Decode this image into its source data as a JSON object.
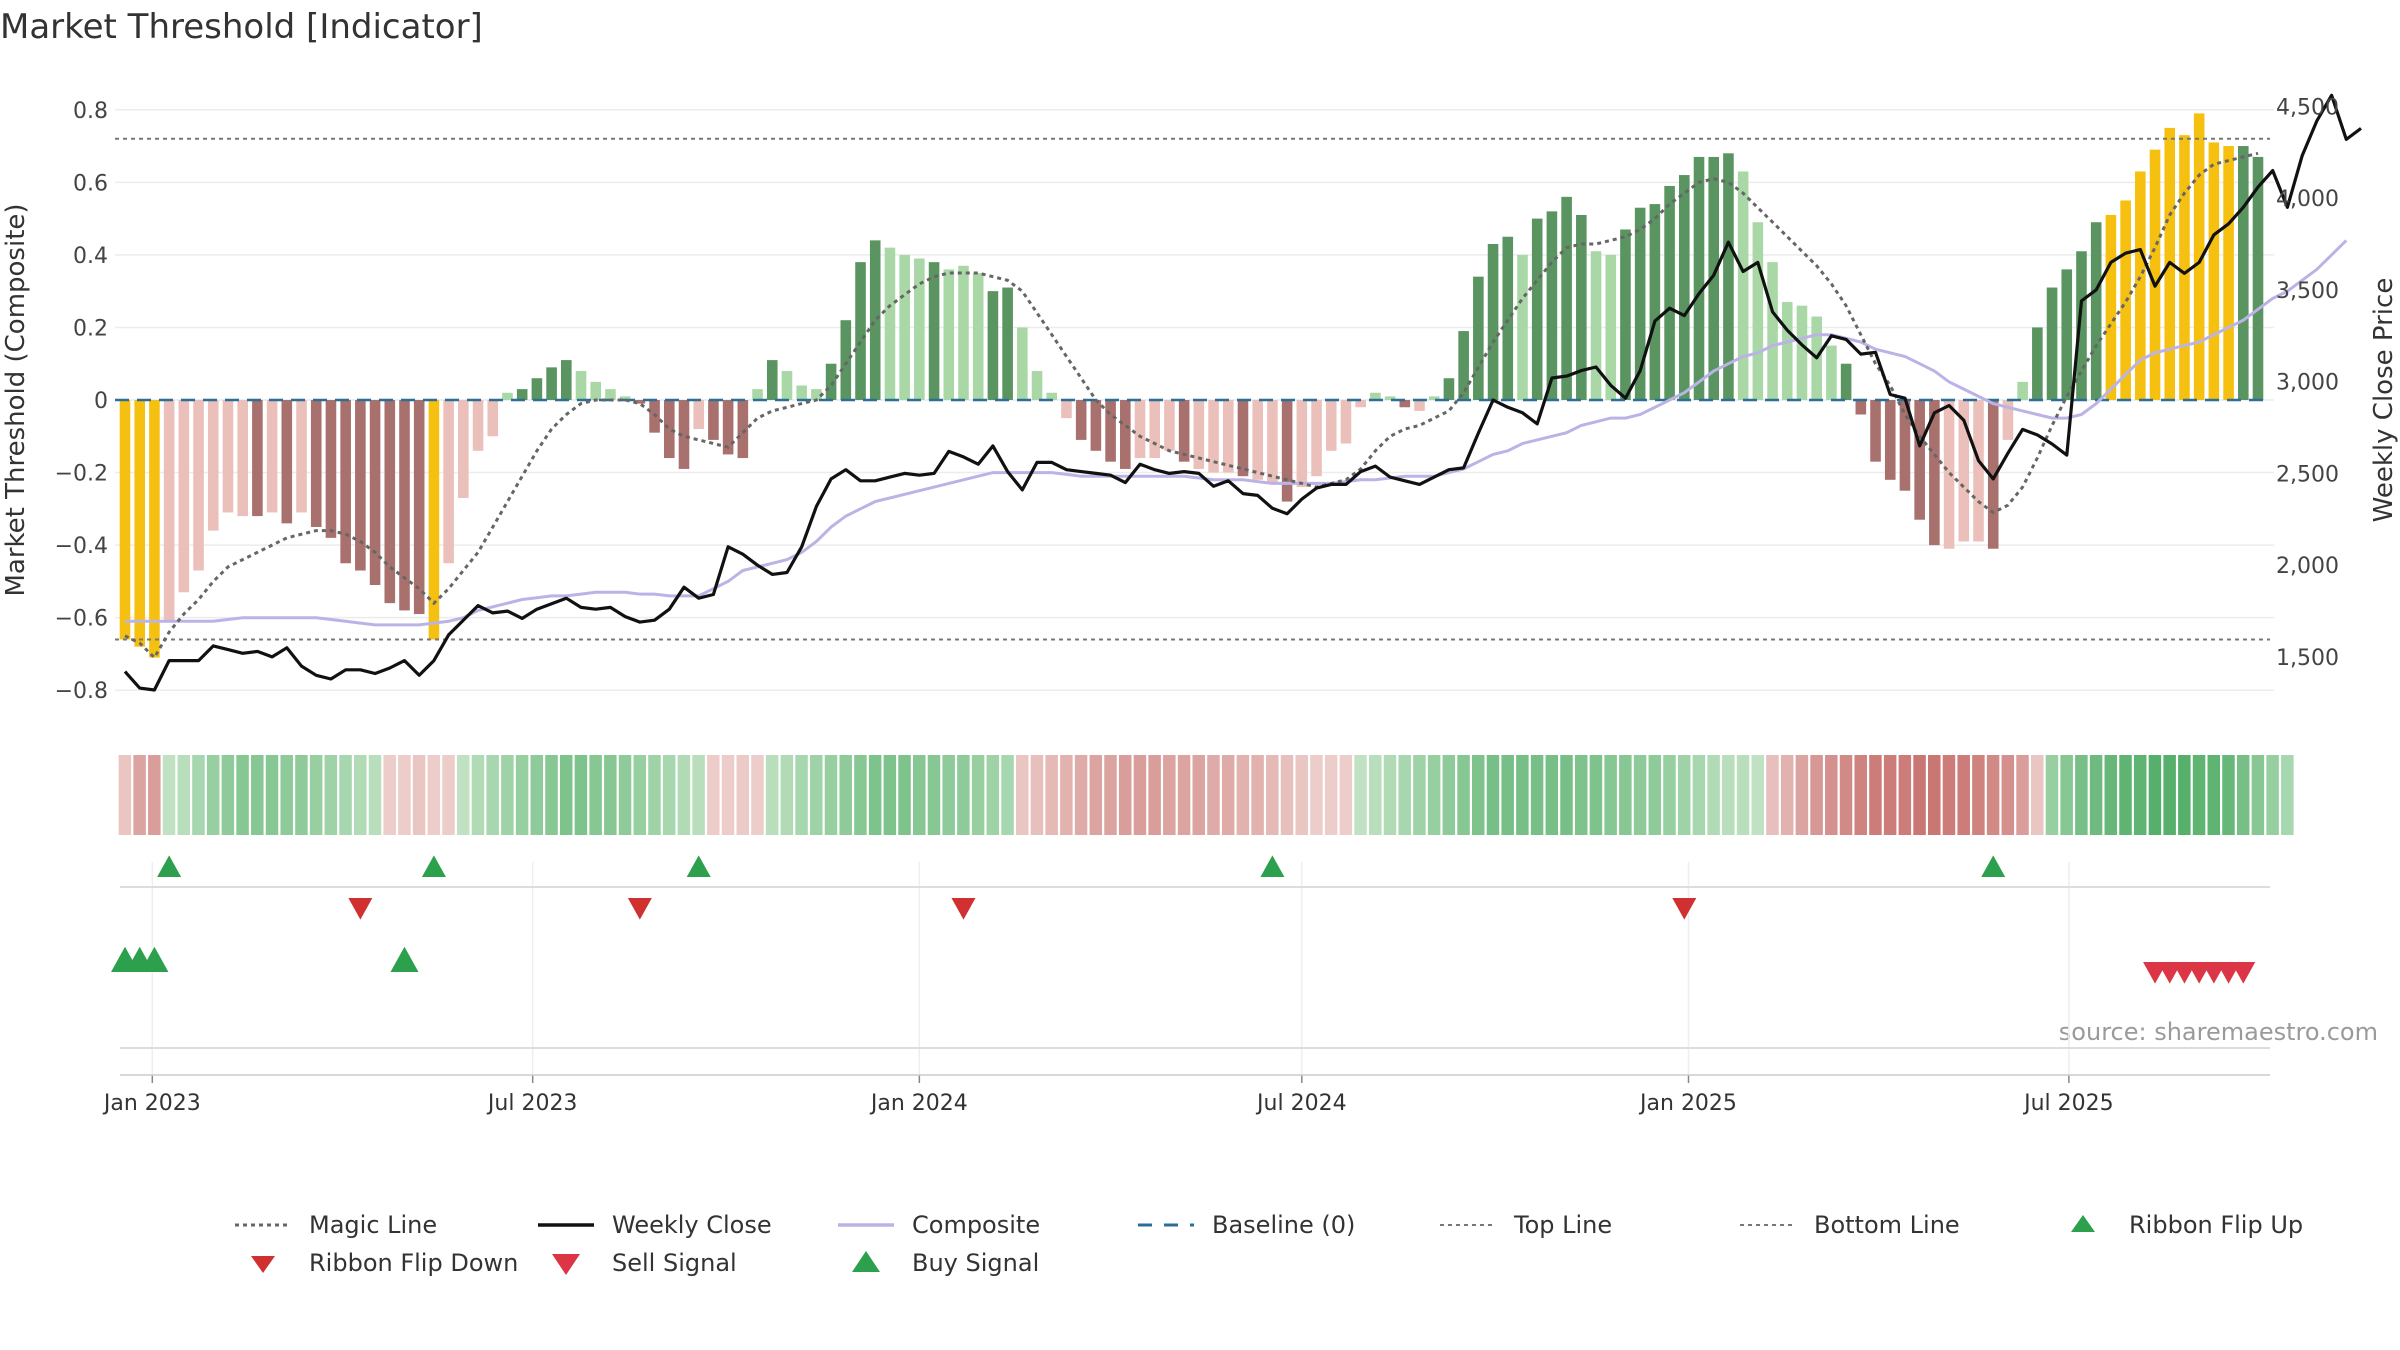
{
  "title": "Market Threshold [Indicator]",
  "source_note": "source: sharemaestro.com",
  "colors": {
    "magic_line": "#666666",
    "weekly_close": "#111111",
    "composite": "#bbb3e6",
    "baseline": "#2a6f97",
    "top_line": "#777777",
    "bottom_line": "#777777",
    "bar_dark_green": "#5a9460",
    "bar_light_green": "#a9d8a6",
    "bar_dark_red": "#a8716e",
    "bar_light_red": "#ebc0bb",
    "bar_extreme": "#f5c010",
    "ribbon_up": "#2ca04c",
    "ribbon_down": "#d03030",
    "buy": "#2ca04c",
    "sell": "#dc3545"
  },
  "chart_data": {
    "type": "bar",
    "title": "Market Threshold [Indicator]",
    "ylabel": "Market Threshold (Composite)",
    "y2label": "Weekly Close Price",
    "ylim": [
      -0.86,
      0.86
    ],
    "y2lim": [
      1200,
      4600
    ],
    "y_ticks": [
      "0.8",
      "0.6",
      "0.4",
      "0.2",
      "0",
      "−0.2",
      "−0.4",
      "−0.6",
      "−0.8"
    ],
    "y2_ticks": [
      "4,500",
      "4,000",
      "3,500",
      "3,000",
      "2,500",
      "2,000",
      "1,500"
    ],
    "x_ticks": [
      "Jan 2023",
      "Jul 2023",
      "Jan 2024",
      "Jul 2024",
      "Jan 2025",
      "Jul 2025"
    ],
    "top_line": 0.72,
    "bottom_line": -0.66,
    "start_date": "2022-12-19",
    "composite_bars": [
      -0.66,
      -0.68,
      -0.71,
      -0.61,
      -0.53,
      -0.47,
      -0.36,
      -0.31,
      -0.32,
      -0.32,
      -0.31,
      -0.34,
      -0.31,
      -0.35,
      -0.38,
      -0.45,
      -0.47,
      -0.51,
      -0.56,
      -0.58,
      -0.59,
      -0.66,
      -0.45,
      -0.27,
      -0.14,
      -0.1,
      0.02,
      0.03,
      0.06,
      0.09,
      0.11,
      0.08,
      0.05,
      0.03,
      0.01,
      -0.01,
      -0.09,
      -0.16,
      -0.19,
      -0.08,
      -0.11,
      -0.15,
      -0.16,
      0.03,
      0.11,
      0.08,
      0.04,
      0.03,
      0.1,
      0.22,
      0.38,
      0.44,
      0.42,
      0.4,
      0.39,
      0.38,
      0.36,
      0.37,
      0.35,
      0.3,
      0.31,
      0.2,
      0.08,
      0.02,
      -0.05,
      -0.11,
      -0.14,
      -0.17,
      -0.19,
      -0.16,
      -0.16,
      -0.14,
      -0.17,
      -0.19,
      -0.2,
      -0.2,
      -0.21,
      -0.22,
      -0.23,
      -0.28,
      -0.24,
      -0.21,
      -0.14,
      -0.12,
      -0.02,
      0.02,
      0.01,
      -0.02,
      -0.03,
      0.01,
      0.06,
      0.19,
      0.34,
      0.43,
      0.45,
      0.4,
      0.5,
      0.52,
      0.56,
      0.51,
      0.41,
      0.4,
      0.47,
      0.53,
      0.54,
      0.59,
      0.62,
      0.67,
      0.67,
      0.68,
      0.63,
      0.49,
      0.38,
      0.27,
      0.26,
      0.23,
      0.15,
      0.1,
      -0.04,
      -0.17,
      -0.22,
      -0.25,
      -0.33,
      -0.4,
      -0.41,
      -0.39,
      -0.39,
      -0.41,
      -0.11,
      0.05,
      0.2,
      0.31,
      0.36,
      0.41,
      0.49,
      0.51,
      0.55,
      0.63,
      0.69,
      0.75,
      0.73,
      0.79,
      0.71,
      0.7,
      0.7,
      0.67
    ],
    "bar_categories": [
      "d",
      "d",
      "d",
      "l",
      "l",
      "l",
      "l",
      "l",
      "l",
      "d",
      "l",
      "d",
      "l",
      "d",
      "d",
      "d",
      "d",
      "d",
      "d",
      "d",
      "d",
      "d",
      "l",
      "l",
      "l",
      "l",
      "l",
      "d",
      "d",
      "d",
      "d",
      "l",
      "l",
      "l",
      "l",
      "d",
      "d",
      "d",
      "d",
      "l",
      "d",
      "d",
      "d",
      "l",
      "d",
      "l",
      "l",
      "l",
      "d",
      "d",
      "d",
      "d",
      "l",
      "l",
      "l",
      "d",
      "l",
      "l",
      "l",
      "d",
      "d",
      "l",
      "l",
      "l",
      "l",
      "d",
      "d",
      "d",
      "d",
      "l",
      "l",
      "l",
      "d",
      "l",
      "l",
      "l",
      "d",
      "l",
      "l",
      "d",
      "l",
      "l",
      "l",
      "l",
      "l",
      "l",
      "l",
      "d",
      "l",
      "l",
      "d",
      "d",
      "d",
      "d",
      "d",
      "l",
      "d",
      "d",
      "d",
      "d",
      "l",
      "l",
      "d",
      "d",
      "d",
      "d",
      "d",
      "d",
      "d",
      "d",
      "l",
      "l",
      "l",
      "l",
      "l",
      "l",
      "l",
      "d",
      "d",
      "d",
      "d",
      "d",
      "d",
      "d",
      "l",
      "l",
      "l",
      "d",
      "l",
      "l",
      "d",
      "d",
      "d",
      "d",
      "d",
      "d",
      "d",
      "d",
      "d",
      "d",
      "d",
      "d",
      "d",
      "d",
      "d",
      "d",
      "d",
      "l"
    ],
    "extreme_bars": [
      0,
      1,
      2,
      21,
      135,
      136,
      137,
      138,
      139,
      140,
      141,
      142,
      143
    ],
    "weekly_close": [
      1420,
      1330,
      1320,
      1480,
      1480,
      1480,
      1560,
      1540,
      1520,
      1530,
      1500,
      1550,
      1450,
      1400,
      1380,
      1430,
      1430,
      1410,
      1440,
      1480,
      1400,
      1480,
      1620,
      1700,
      1780,
      1740,
      1750,
      1710,
      1760,
      1790,
      1820,
      1770,
      1760,
      1770,
      1720,
      1690,
      1700,
      1760,
      1880,
      1820,
      1840,
      2100,
      2060,
      2000,
      1950,
      1960,
      2100,
      2320,
      2470,
      2520,
      2460,
      2460,
      2480,
      2500,
      2490,
      2500,
      2620,
      2590,
      2550,
      2650,
      2510,
      2410,
      2560,
      2560,
      2520,
      2510,
      2500,
      2490,
      2450,
      2550,
      2520,
      2500,
      2510,
      2500,
      2430,
      2460,
      2390,
      2380,
      2310,
      2280,
      2360,
      2420,
      2440,
      2440,
      2510,
      2540,
      2480,
      2460,
      2440,
      2480,
      2520,
      2530,
      2720,
      2900,
      2860,
      2830,
      2770,
      3020,
      3030,
      3060,
      3080,
      2980,
      2910,
      3060,
      3330,
      3400,
      3360,
      3480,
      3580,
      3760,
      3600,
      3650,
      3380,
      3280,
      3200,
      3130,
      3250,
      3230,
      3150,
      3160,
      2930,
      2910,
      2650,
      2830,
      2870,
      2790,
      2570,
      2470,
      2610,
      2740,
      2710,
      2660,
      2600,
      3440,
      3500,
      3650,
      3700,
      3720,
      3520,
      3650,
      3590,
      3650,
      3800,
      3860,
      3950,
      4060,
      4150,
      3950,
      4230,
      4420,
      4560,
      4320,
      4380
    ],
    "composite_line": [
      -0.61,
      -0.61,
      -0.61,
      -0.61,
      -0.61,
      -0.61,
      -0.61,
      -0.605,
      -0.6,
      -0.6,
      -0.6,
      -0.6,
      -0.6,
      -0.6,
      -0.605,
      -0.61,
      -0.615,
      -0.62,
      -0.62,
      -0.62,
      -0.62,
      -0.615,
      -0.61,
      -0.6,
      -0.58,
      -0.57,
      -0.56,
      -0.55,
      -0.545,
      -0.54,
      -0.54,
      -0.535,
      -0.53,
      -0.53,
      -0.53,
      -0.535,
      -0.535,
      -0.54,
      -0.54,
      -0.54,
      -0.52,
      -0.5,
      -0.47,
      -0.46,
      -0.45,
      -0.44,
      -0.42,
      -0.39,
      -0.35,
      -0.32,
      -0.3,
      -0.28,
      -0.27,
      -0.26,
      -0.25,
      -0.24,
      -0.23,
      -0.22,
      -0.21,
      -0.2,
      -0.2,
      -0.2,
      -0.2,
      -0.2,
      -0.205,
      -0.21,
      -0.21,
      -0.21,
      -0.21,
      -0.21,
      -0.21,
      -0.21,
      -0.21,
      -0.215,
      -0.22,
      -0.22,
      -0.22,
      -0.225,
      -0.23,
      -0.23,
      -0.23,
      -0.23,
      -0.23,
      -0.225,
      -0.22,
      -0.22,
      -0.215,
      -0.21,
      -0.21,
      -0.21,
      -0.2,
      -0.19,
      -0.17,
      -0.15,
      -0.14,
      -0.12,
      -0.11,
      -0.1,
      -0.09,
      -0.07,
      -0.06,
      -0.05,
      -0.05,
      -0.04,
      -0.02,
      0.0,
      0.02,
      0.05,
      0.08,
      0.1,
      0.12,
      0.13,
      0.15,
      0.16,
      0.17,
      0.18,
      0.18,
      0.17,
      0.16,
      0.14,
      0.13,
      0.12,
      0.1,
      0.08,
      0.05,
      0.03,
      0.01,
      -0.01,
      -0.02,
      -0.03,
      -0.04,
      -0.05,
      -0.05,
      -0.04,
      -0.01,
      0.03,
      0.07,
      0.11,
      0.13,
      0.14,
      0.15,
      0.16,
      0.18,
      0.2,
      0.22,
      0.25,
      0.28,
      0.3,
      0.33,
      0.36,
      0.4,
      0.44
    ],
    "magic_line": [
      -0.65,
      -0.67,
      -0.71,
      -0.64,
      -0.59,
      -0.55,
      -0.5,
      -0.46,
      -0.44,
      -0.42,
      -0.4,
      -0.38,
      -0.37,
      -0.36,
      -0.36,
      -0.37,
      -0.39,
      -0.42,
      -0.46,
      -0.49,
      -0.52,
      -0.56,
      -0.52,
      -0.47,
      -0.42,
      -0.35,
      -0.28,
      -0.21,
      -0.14,
      -0.08,
      -0.04,
      -0.01,
      0.0,
      0.0,
      0.0,
      -0.01,
      -0.04,
      -0.08,
      -0.1,
      -0.11,
      -0.12,
      -0.13,
      -0.09,
      -0.05,
      -0.03,
      -0.02,
      -0.01,
      0.0,
      0.04,
      0.1,
      0.16,
      0.22,
      0.26,
      0.29,
      0.32,
      0.34,
      0.35,
      0.35,
      0.35,
      0.34,
      0.33,
      0.3,
      0.24,
      0.18,
      0.12,
      0.06,
      0.0,
      -0.04,
      -0.07,
      -0.1,
      -0.12,
      -0.14,
      -0.15,
      -0.16,
      -0.17,
      -0.18,
      -0.19,
      -0.2,
      -0.21,
      -0.22,
      -0.23,
      -0.24,
      -0.23,
      -0.22,
      -0.19,
      -0.14,
      -0.1,
      -0.08,
      -0.07,
      -0.05,
      -0.03,
      0.02,
      0.09,
      0.16,
      0.22,
      0.28,
      0.33,
      0.38,
      0.42,
      0.43,
      0.43,
      0.44,
      0.45,
      0.47,
      0.5,
      0.54,
      0.57,
      0.6,
      0.61,
      0.6,
      0.57,
      0.53,
      0.49,
      0.45,
      0.41,
      0.37,
      0.32,
      0.26,
      0.18,
      0.1,
      0.04,
      -0.04,
      -0.1,
      -0.15,
      -0.2,
      -0.24,
      -0.28,
      -0.31,
      -0.29,
      -0.24,
      -0.16,
      -0.07,
      0.01,
      0.08,
      0.15,
      0.21,
      0.27,
      0.34,
      0.42,
      0.51,
      0.57,
      0.62,
      0.65,
      0.66,
      0.67,
      0.68
    ],
    "ribbon_intensity": [
      -0.15,
      -0.4,
      -0.45,
      0.15,
      0.2,
      0.3,
      0.4,
      0.45,
      0.5,
      0.5,
      0.5,
      0.45,
      0.45,
      0.4,
      0.35,
      0.3,
      0.25,
      0.2,
      -0.1,
      -0.1,
      -0.15,
      -0.1,
      -0.1,
      0.15,
      0.25,
      0.3,
      0.35,
      0.4,
      0.45,
      0.5,
      0.55,
      0.55,
      0.5,
      0.5,
      0.45,
      0.4,
      0.35,
      0.3,
      0.25,
      0.2,
      -0.1,
      -0.1,
      -0.12,
      -0.1,
      0.2,
      0.25,
      0.3,
      0.35,
      0.4,
      0.45,
      0.5,
      0.55,
      0.55,
      0.55,
      0.5,
      0.5,
      0.45,
      0.45,
      0.4,
      0.35,
      0.3,
      -0.15,
      -0.2,
      -0.25,
      -0.3,
      -0.35,
      -0.4,
      -0.4,
      -0.45,
      -0.45,
      -0.45,
      -0.4,
      -0.4,
      -0.4,
      -0.35,
      -0.35,
      -0.3,
      -0.3,
      -0.25,
      -0.2,
      -0.15,
      -0.1,
      -0.1,
      -0.1,
      0.15,
      0.2,
      0.25,
      0.3,
      0.35,
      0.4,
      0.45,
      0.5,
      0.55,
      0.6,
      0.6,
      0.6,
      0.6,
      0.6,
      0.6,
      0.55,
      0.55,
      0.5,
      0.5,
      0.45,
      0.45,
      0.4,
      0.35,
      0.3,
      0.25,
      0.2,
      0.2,
      0.15,
      -0.2,
      -0.3,
      -0.4,
      -0.5,
      -0.55,
      -0.6,
      -0.65,
      -0.7,
      -0.7,
      -0.7,
      -0.75,
      -0.75,
      -0.7,
      -0.7,
      -0.65,
      -0.6,
      -0.55,
      -0.45,
      -0.15,
      0.4,
      0.5,
      0.6,
      0.65,
      0.7,
      0.75,
      0.75,
      0.8,
      0.8,
      0.8,
      0.75,
      0.75,
      0.7,
      0.6,
      0.5,
      0.4,
      0.3
    ],
    "ribbon_flip_up": [
      3,
      21,
      39,
      78,
      127
    ],
    "ribbon_flip_down": [
      16,
      35,
      57,
      106
    ],
    "buy_signal": [
      0,
      1,
      2,
      19
    ],
    "sell_signal": [
      138,
      139,
      140,
      141,
      142,
      143,
      144
    ]
  },
  "legend": [
    {
      "label": "Magic Line",
      "type": "dotted-line",
      "color": "#666666"
    },
    {
      "label": "Weekly Close",
      "type": "solid-line",
      "color": "#111111"
    },
    {
      "label": "Composite",
      "type": "solid-line",
      "color": "#bbb3e6"
    },
    {
      "label": "Baseline (0)",
      "type": "dashed-line",
      "color": "#2a6f97"
    },
    {
      "label": "Top Line",
      "type": "dotted-thin",
      "color": "#777777"
    },
    {
      "label": "Bottom Line",
      "type": "dotted-thin",
      "color": "#777777"
    },
    {
      "label": "Ribbon Flip Up",
      "type": "triangle-up",
      "color": "#2ca04c"
    },
    {
      "label": "Ribbon Flip Down",
      "type": "triangle-down",
      "color": "#d03030"
    },
    {
      "label": "Sell Signal",
      "type": "triangle-down-big",
      "color": "#dc3545"
    },
    {
      "label": "Buy Signal",
      "type": "triangle-up-big",
      "color": "#2ca04c"
    }
  ]
}
